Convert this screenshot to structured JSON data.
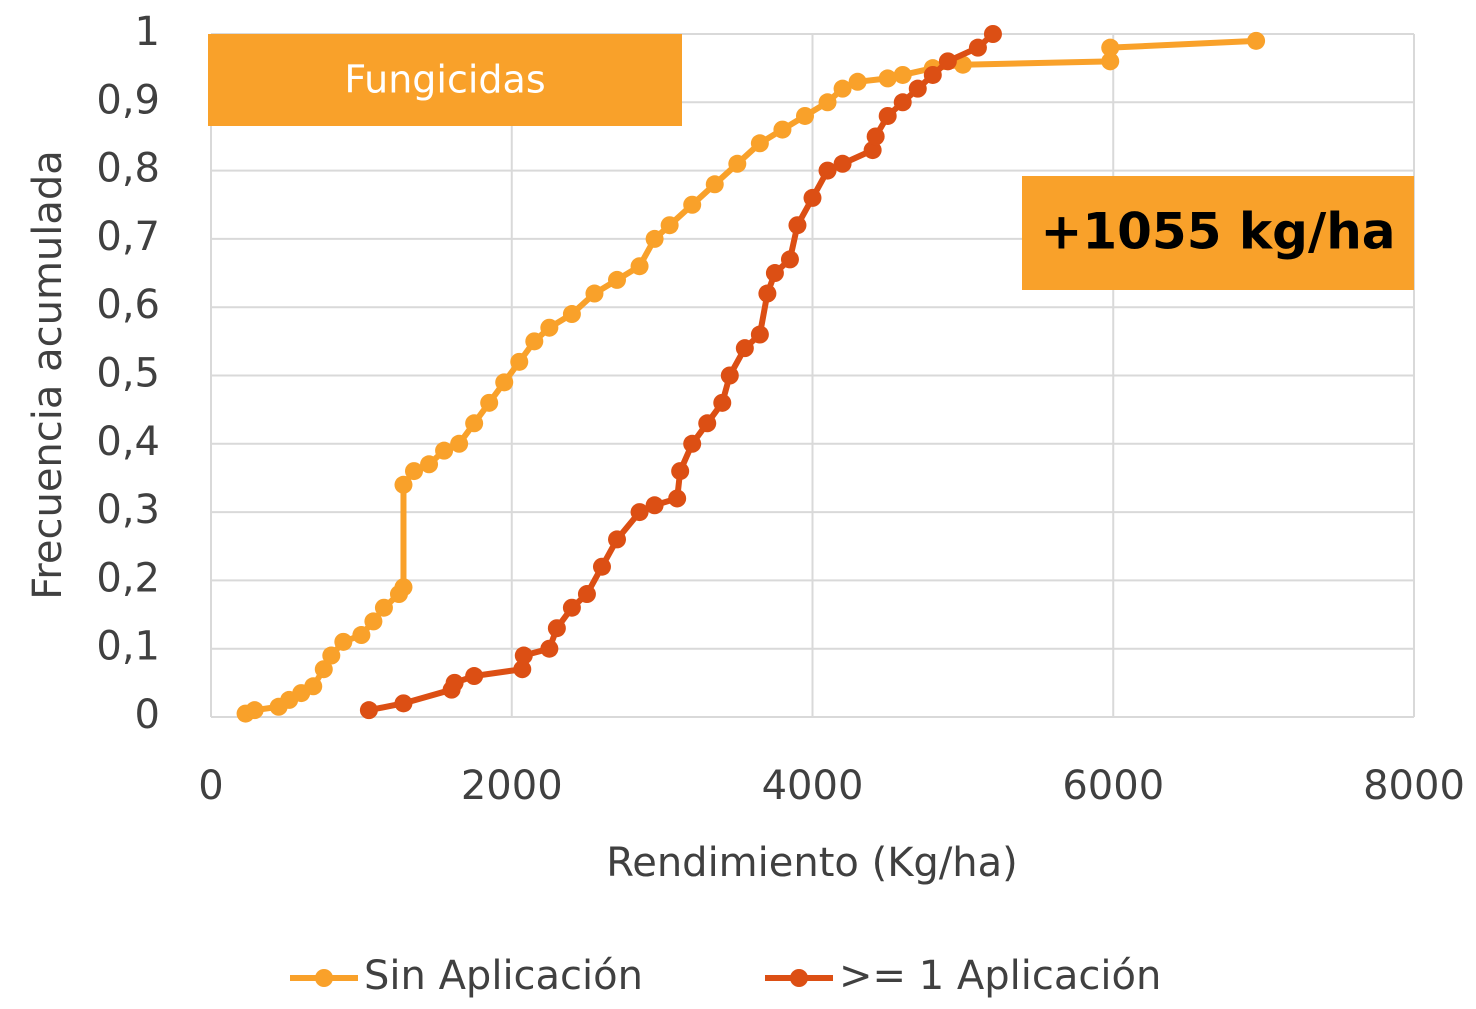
{
  "chart_data": {
    "type": "line",
    "x_label": "Rendimiento (Kg/ha)",
    "y_label": "Frecuencia acumulada",
    "xlim": [
      0,
      8000
    ],
    "xticks": [
      0,
      2000,
      4000,
      6000,
      8000
    ],
    "ylim": [
      0,
      1
    ],
    "yticks": [
      0,
      {
        "value": 0.1,
        "label": "0,1"
      },
      {
        "value": 0.2,
        "label": "0,2"
      },
      {
        "value": 0.3,
        "label": "0,3"
      },
      {
        "value": 0.4,
        "label": "0,4"
      },
      {
        "value": 0.5,
        "label": "0,5"
      },
      {
        "value": 0.6,
        "label": "0,6"
      },
      {
        "value": 0.7,
        "label": "0,7"
      },
      {
        "value": 0.8,
        "label": "0,8"
      },
      {
        "value": 0.9,
        "label": "0,9"
      },
      1
    ],
    "grid": true,
    "legend": "bottom",
    "annotations": [
      "Fungicidas",
      "+1055 kg/ha"
    ],
    "series": [
      {
        "name": "Sin Aplicación",
        "color": "#f9a12a",
        "x": [
          230,
          290,
          450,
          520,
          600,
          680,
          750,
          800,
          880,
          1000,
          1080,
          1150,
          1250,
          1280,
          1280,
          1350,
          1450,
          1550,
          1650,
          1750,
          1850,
          1950,
          2050,
          2150,
          2250,
          2400,
          2550,
          2700,
          2850,
          2950,
          3050,
          3200,
          3350,
          3500,
          3650,
          3800,
          3950,
          4100,
          4200,
          4300,
          4500,
          4600,
          4800,
          5000,
          5980,
          5980,
          6950
        ],
        "values": [
          0.005,
          0.01,
          0.015,
          0.025,
          0.035,
          0.045,
          0.07,
          0.09,
          0.11,
          0.12,
          0.14,
          0.16,
          0.18,
          0.19,
          0.34,
          0.36,
          0.37,
          0.39,
          0.4,
          0.43,
          0.46,
          0.49,
          0.52,
          0.55,
          0.57,
          0.59,
          0.62,
          0.64,
          0.66,
          0.7,
          0.72,
          0.75,
          0.78,
          0.81,
          0.84,
          0.86,
          0.88,
          0.9,
          0.92,
          0.93,
          0.935,
          0.94,
          0.95,
          0.955,
          0.96,
          0.98,
          0.99
        ]
      },
      {
        "name": ">= 1 Aplicación",
        "color": "#dc4f14",
        "x": [
          1050,
          1280,
          1600,
          1620,
          1750,
          2070,
          2080,
          2250,
          2300,
          2400,
          2500,
          2600,
          2700,
          2850,
          2950,
          3100,
          3120,
          3200,
          3300,
          3400,
          3450,
          3550,
          3650,
          3700,
          3750,
          3850,
          3900,
          4000,
          4100,
          4200,
          4400,
          4420,
          4500,
          4600,
          4700,
          4800,
          4900,
          5100,
          5200
        ],
        "values": [
          0.01,
          0.02,
          0.04,
          0.05,
          0.06,
          0.07,
          0.09,
          0.1,
          0.13,
          0.16,
          0.18,
          0.22,
          0.26,
          0.3,
          0.31,
          0.32,
          0.36,
          0.4,
          0.43,
          0.46,
          0.5,
          0.54,
          0.56,
          0.62,
          0.65,
          0.67,
          0.72,
          0.76,
          0.8,
          0.81,
          0.83,
          0.85,
          0.88,
          0.9,
          0.92,
          0.94,
          0.96,
          0.98,
          1.0
        ]
      }
    ]
  }
}
